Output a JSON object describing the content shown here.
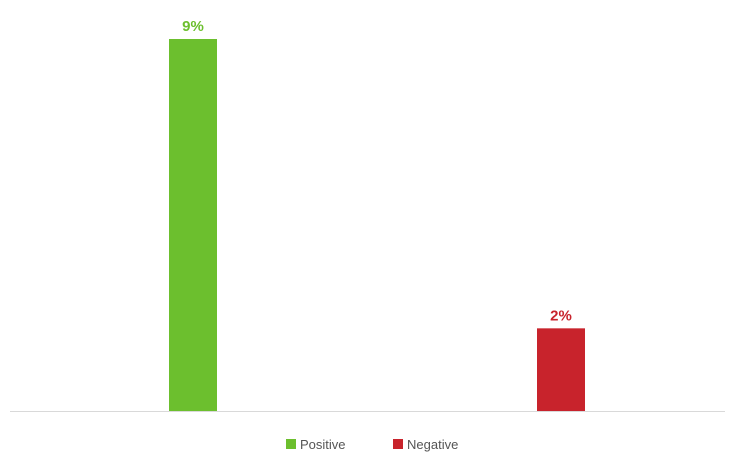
{
  "chart_data": {
    "type": "bar",
    "categories": [
      "Positive",
      "Negative"
    ],
    "values": [
      9,
      2
    ],
    "value_labels": [
      "9%",
      "2%"
    ],
    "colors": [
      "#6cbf2e",
      "#c8232c"
    ],
    "title": "",
    "xlabel": "",
    "ylabel": "",
    "ylim": [
      0,
      9
    ],
    "grid": false,
    "legend_position": "bottom-center",
    "legend": [
      {
        "label": "Positive",
        "color": "#6cbf2e"
      },
      {
        "label": "Negative",
        "color": "#c8232c"
      }
    ]
  }
}
